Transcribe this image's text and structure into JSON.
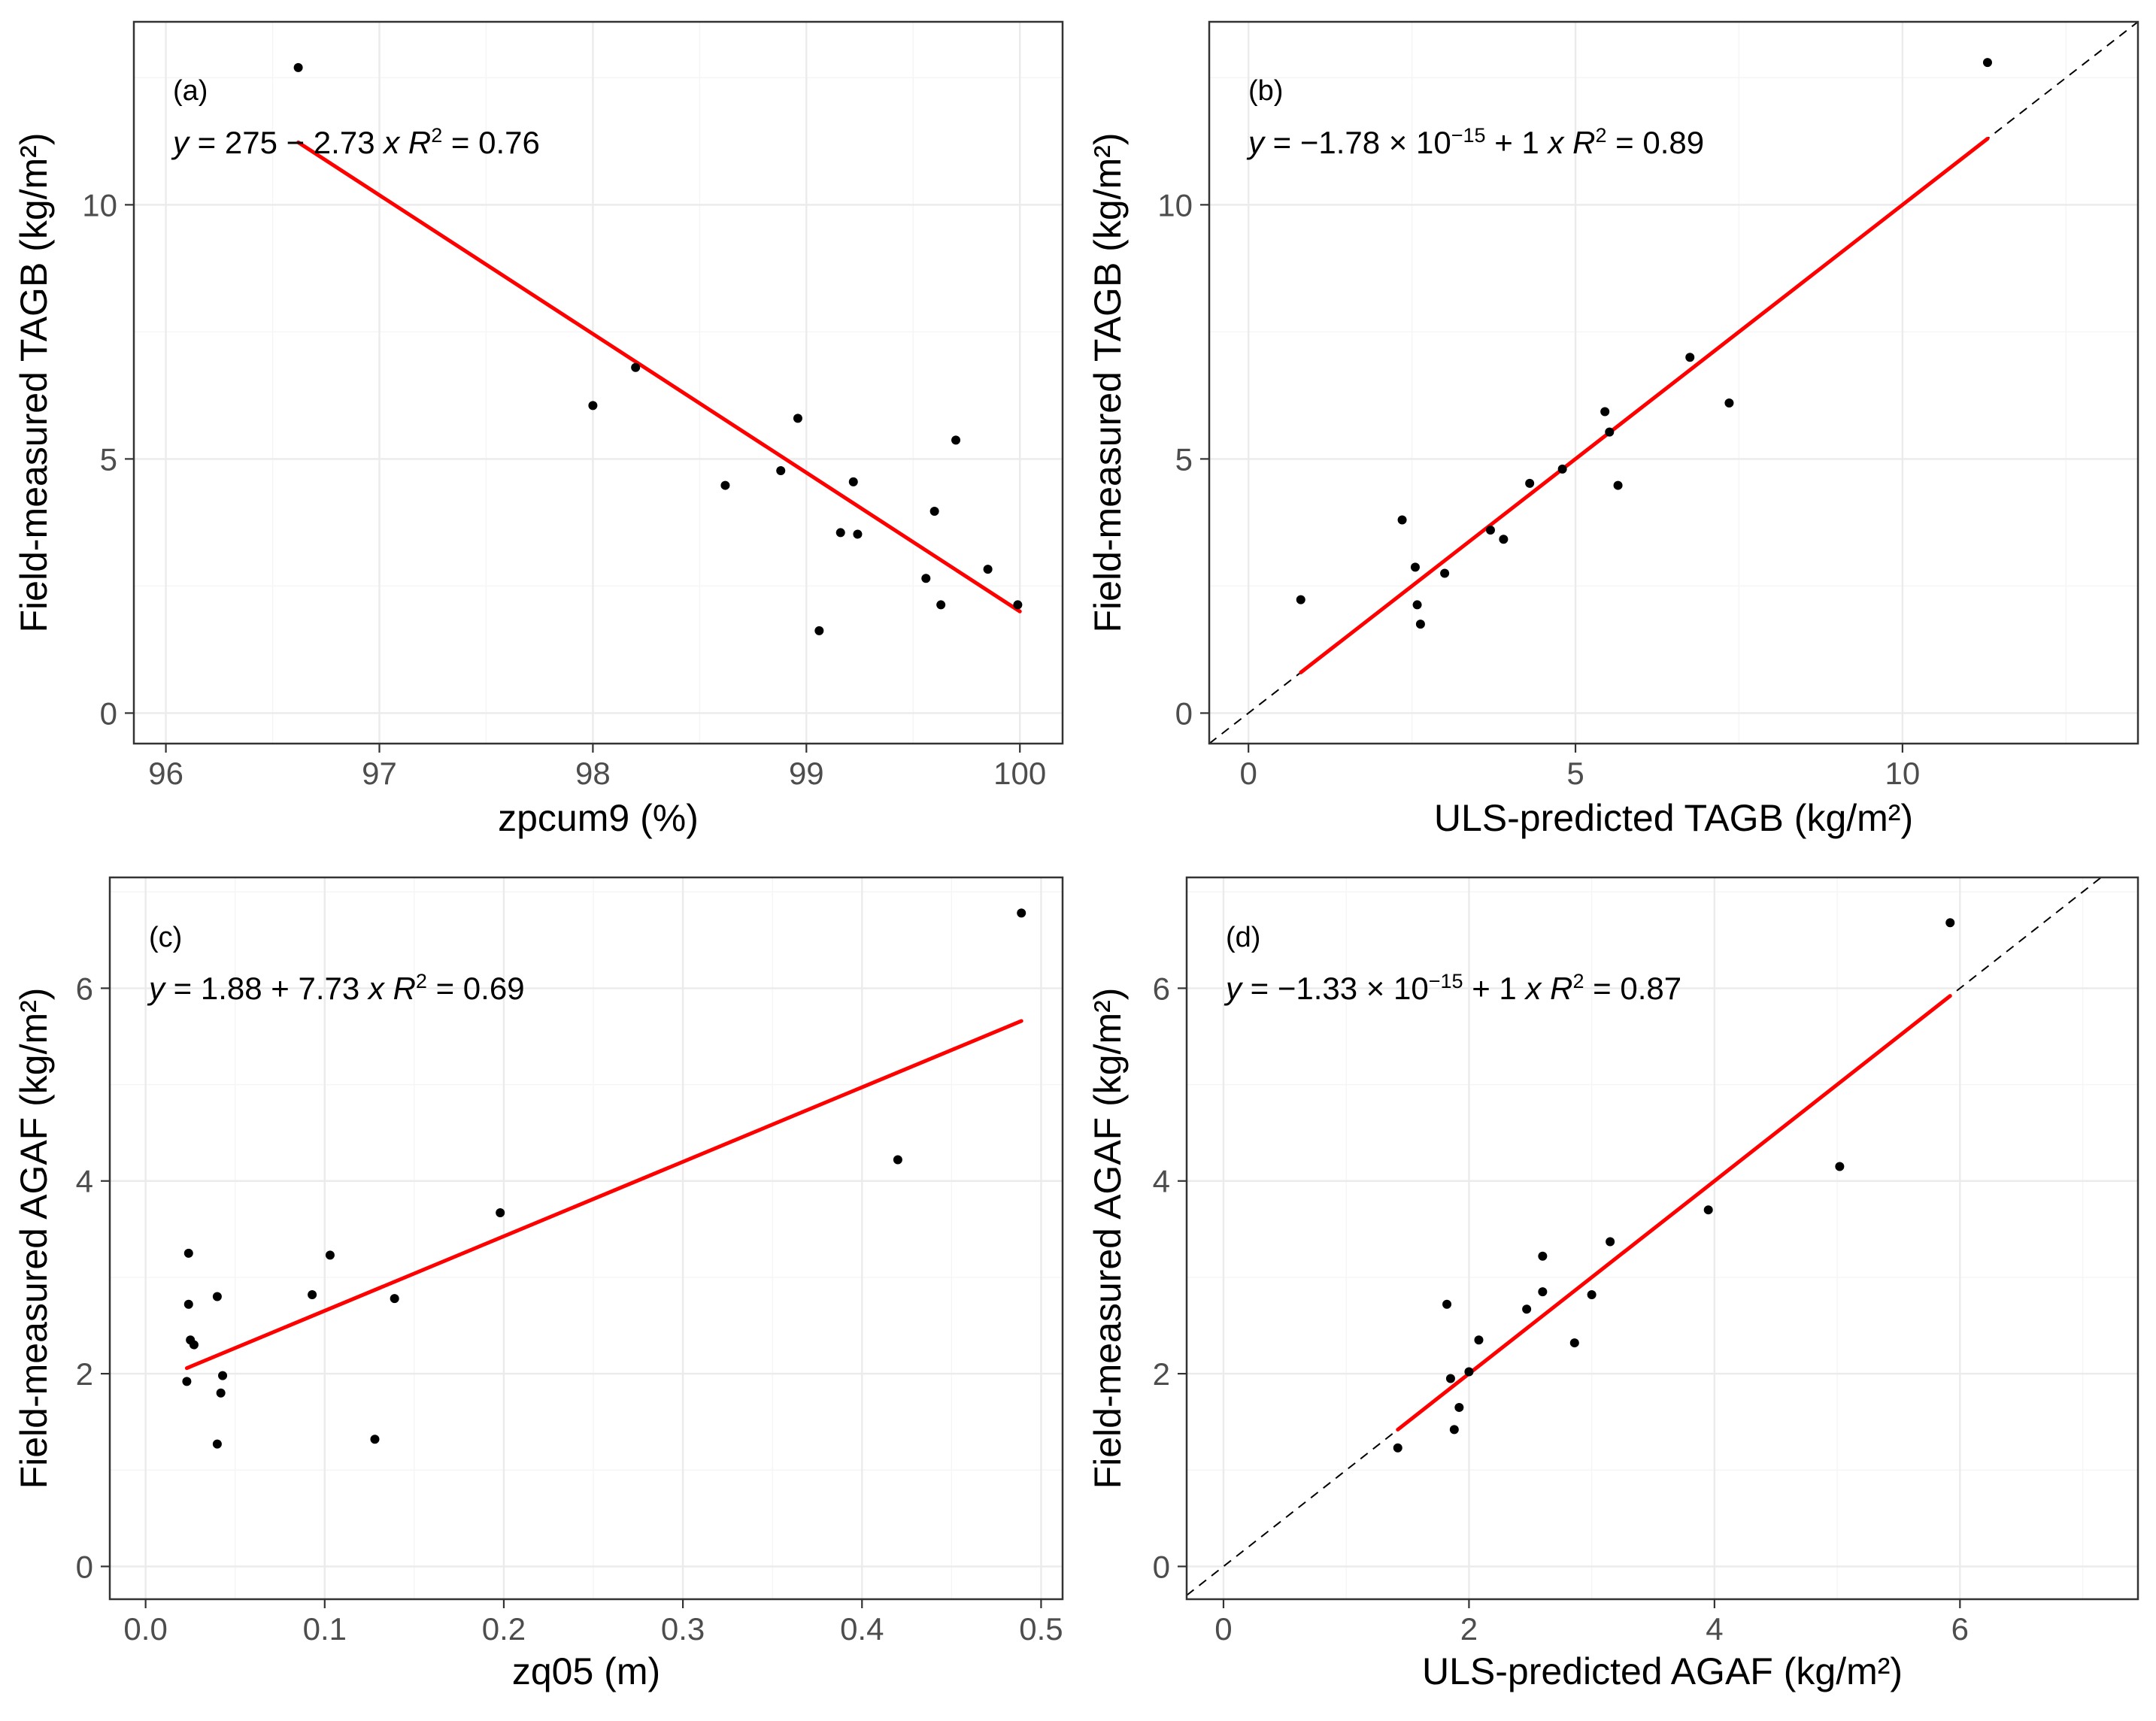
{
  "colors": {
    "fit_line": "#ff0000",
    "point": "#000000",
    "ref_line": "#000000"
  },
  "chart_data": [
    {
      "id": "a",
      "type": "scatter",
      "panel_label": "(a)",
      "xlabel": "zpcum9 (%)",
      "ylabel": "Field-measured TAGB (kg/m²)",
      "xlim": [
        95.85,
        100.2
      ],
      "ylim": [
        -0.6,
        13.6
      ],
      "xticks": [
        96,
        97,
        98,
        99,
        100
      ],
      "xtick_labels": [
        "96",
        "97",
        "98",
        "99",
        "100"
      ],
      "yticks": [
        0,
        5,
        10
      ],
      "ytick_labels": [
        "0",
        "5",
        "10"
      ],
      "equation": {
        "lhs": "y",
        "text": " = 275 − 2.73 ",
        "var": "x",
        "r2_sym": "R",
        "r2_exp": "2",
        "r2_value": " = 0.76"
      },
      "fit": {
        "intercept": 275,
        "slope": -2.73,
        "x_range": [
          96.62,
          100
        ]
      },
      "reference_line": false,
      "points": [
        [
          96.62,
          12.7
        ],
        [
          98.0,
          6.05
        ],
        [
          98.2,
          6.8
        ],
        [
          98.62,
          4.48
        ],
        [
          98.88,
          4.77
        ],
        [
          98.96,
          5.8
        ],
        [
          99.06,
          1.62
        ],
        [
          99.16,
          3.55
        ],
        [
          99.22,
          4.55
        ],
        [
          99.24,
          3.52
        ],
        [
          99.56,
          2.65
        ],
        [
          99.6,
          3.97
        ],
        [
          99.63,
          2.13
        ],
        [
          99.7,
          5.37
        ],
        [
          99.85,
          2.83
        ],
        [
          99.99,
          2.13
        ]
      ]
    },
    {
      "id": "b",
      "type": "scatter",
      "panel_label": "(b)",
      "xlabel": "ULS-predicted TAGB (kg/m²)",
      "ylabel": "Field-measured TAGB (kg/m²)",
      "xlim": [
        -0.6,
        13.6
      ],
      "ylim": [
        -0.6,
        13.6
      ],
      "xticks": [
        0,
        5,
        10
      ],
      "xtick_labels": [
        "0",
        "5",
        "10"
      ],
      "yticks": [
        0,
        5,
        10
      ],
      "ytick_labels": [
        "0",
        "5",
        "10"
      ],
      "equation": {
        "lhs": "y",
        "text": " = −1.78 × 10",
        "exp": "−15",
        "text2": " + 1 ",
        "var": "x",
        "r2_sym": "R",
        "r2_exp": "2",
        "r2_value": " = 0.89"
      },
      "fit": {
        "intercept": 0,
        "slope": 1,
        "x_range": [
          0.8,
          11.3
        ]
      },
      "reference_line": true,
      "points": [
        [
          0.8,
          2.23
        ],
        [
          2.35,
          3.8
        ],
        [
          2.55,
          2.87
        ],
        [
          2.58,
          2.13
        ],
        [
          2.63,
          1.75
        ],
        [
          3.0,
          2.75
        ],
        [
          3.7,
          3.6
        ],
        [
          3.9,
          3.42
        ],
        [
          4.3,
          4.52
        ],
        [
          4.8,
          4.8
        ],
        [
          5.45,
          5.93
        ],
        [
          5.52,
          5.53
        ],
        [
          5.65,
          4.48
        ],
        [
          6.75,
          7.0
        ],
        [
          7.35,
          6.1
        ],
        [
          11.3,
          12.8
        ]
      ]
    },
    {
      "id": "c",
      "type": "scatter",
      "panel_label": "(c)",
      "xlabel": "zq05 (m)",
      "ylabel": "Field-measured AGAF (kg/m²)",
      "xlim": [
        -0.02,
        0.512
      ],
      "ylim": [
        -0.34,
        7.15
      ],
      "xticks": [
        0.0,
        0.1,
        0.2,
        0.3,
        0.4,
        0.5
      ],
      "xtick_labels": [
        "0.0",
        "0.1",
        "0.2",
        "0.3",
        "0.4",
        "0.5"
      ],
      "yticks": [
        0,
        2,
        4,
        6
      ],
      "ytick_labels": [
        "0",
        "2",
        "4",
        "6"
      ],
      "equation": {
        "lhs": "y",
        "text": " = 1.88 + 7.73 ",
        "var": "x",
        "r2_sym": "R",
        "r2_exp": "2",
        "r2_value": " = 0.69"
      },
      "fit": {
        "intercept": 1.88,
        "slope": 7.73,
        "x_range": [
          0.023,
          0.489
        ]
      },
      "reference_line": false,
      "points": [
        [
          0.023,
          1.92
        ],
        [
          0.024,
          3.25
        ],
        [
          0.024,
          2.72
        ],
        [
          0.025,
          2.35
        ],
        [
          0.027,
          2.3
        ],
        [
          0.04,
          2.8
        ],
        [
          0.04,
          1.27
        ],
        [
          0.042,
          1.8
        ],
        [
          0.043,
          1.98
        ],
        [
          0.093,
          2.82
        ],
        [
          0.103,
          3.23
        ],
        [
          0.128,
          1.32
        ],
        [
          0.139,
          2.78
        ],
        [
          0.198,
          3.67
        ],
        [
          0.42,
          4.22
        ],
        [
          0.489,
          6.78
        ]
      ]
    },
    {
      "id": "d",
      "type": "scatter",
      "panel_label": "(d)",
      "xlabel": "ULS-predicted AGAF (kg/m²)",
      "ylabel": "Field-measured AGAF (kg/m²)",
      "xlim": [
        -0.3,
        7.45
      ],
      "ylim": [
        -0.34,
        7.15
      ],
      "xticks": [
        0,
        2,
        4,
        6
      ],
      "xtick_labels": [
        "0",
        "2",
        "4",
        "6"
      ],
      "yticks": [
        0,
        2,
        4,
        6
      ],
      "ytick_labels": [
        "0",
        "2",
        "4",
        "6"
      ],
      "equation": {
        "lhs": "y",
        "text": " = −1.33 × 10",
        "exp": "−15",
        "text2": " + 1 ",
        "var": "x",
        "r2_sym": "R",
        "r2_exp": "2",
        "r2_value": " = 0.87"
      },
      "fit": {
        "intercept": 0,
        "slope": 1,
        "x_range": [
          1.42,
          5.92
        ]
      },
      "reference_line": true,
      "points": [
        [
          1.42,
          1.23
        ],
        [
          1.82,
          2.72
        ],
        [
          1.85,
          1.95
        ],
        [
          1.88,
          1.42
        ],
        [
          1.92,
          1.65
        ],
        [
          2.0,
          2.02
        ],
        [
          2.08,
          2.35
        ],
        [
          2.47,
          2.67
        ],
        [
          2.6,
          2.85
        ],
        [
          2.6,
          3.22
        ],
        [
          2.86,
          2.32
        ],
        [
          3.0,
          2.82
        ],
        [
          3.15,
          3.37
        ],
        [
          3.95,
          3.7
        ],
        [
          5.02,
          4.15
        ],
        [
          5.92,
          6.68
        ]
      ]
    }
  ]
}
